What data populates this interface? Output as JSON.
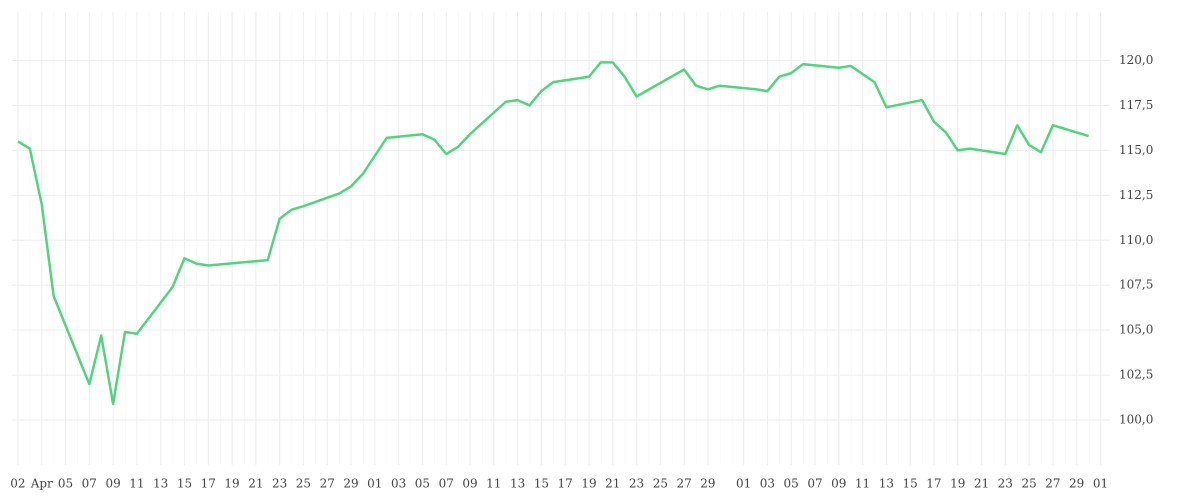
{
  "chart_data": {
    "type": "line",
    "x": [
      0,
      1,
      2,
      3,
      6,
      7,
      8,
      9,
      10,
      13,
      14,
      15,
      16,
      21,
      22,
      23,
      24,
      27,
      28,
      29,
      31,
      34,
      35,
      36,
      37,
      38,
      41,
      42,
      43,
      44,
      45,
      48,
      49,
      50,
      51,
      52,
      56,
      57,
      58,
      59,
      62,
      63,
      64,
      65,
      66,
      69,
      70,
      72,
      73,
      76,
      77,
      78,
      79,
      80,
      83,
      84,
      85,
      86,
      87,
      90
    ],
    "series": [
      {
        "color": "#52d47f",
        "values": [
          115.5,
          115.1,
          112.0,
          106.9,
          102.0,
          104.7,
          100.9,
          104.9,
          104.8,
          107.4,
          109.0,
          108.7,
          108.6,
          108.9,
          111.2,
          111.7,
          111.9,
          112.6,
          113.0,
          113.7,
          115.7,
          115.9,
          115.6,
          114.8,
          115.2,
          115.9,
          117.7,
          117.8,
          117.5,
          118.3,
          118.8,
          119.1,
          119.9,
          119.9,
          119.1,
          118.0,
          119.5,
          118.6,
          118.4,
          118.6,
          118.4,
          118.3,
          119.1,
          119.3,
          119.8,
          119.6,
          119.7,
          118.8,
          117.4,
          117.8,
          116.6,
          116.0,
          115.0,
          115.1,
          114.8,
          116.4,
          115.3,
          114.9,
          116.4,
          115.8
        ]
      }
    ],
    "xlim": [
      -0.5,
      91.8
    ],
    "xticks": [
      {
        "value": 0,
        "label": "02"
      },
      {
        "value": 2,
        "label": "Apr"
      },
      {
        "value": 4,
        "label": "05"
      },
      {
        "value": 6,
        "label": "07"
      },
      {
        "value": 8,
        "label": "09"
      },
      {
        "value": 10,
        "label": "11"
      },
      {
        "value": 12,
        "label": "13"
      },
      {
        "value": 14,
        "label": "15"
      },
      {
        "value": 16,
        "label": "17"
      },
      {
        "value": 18,
        "label": "19"
      },
      {
        "value": 20,
        "label": "21"
      },
      {
        "value": 22,
        "label": "23"
      },
      {
        "value": 24,
        "label": "25"
      },
      {
        "value": 26,
        "label": "27"
      },
      {
        "value": 28,
        "label": "29"
      },
      {
        "value": 30,
        "label": "01"
      },
      {
        "value": 32,
        "label": "03"
      },
      {
        "value": 34,
        "label": "05"
      },
      {
        "value": 36,
        "label": "07"
      },
      {
        "value": 38,
        "label": "09"
      },
      {
        "value": 40,
        "label": "11"
      },
      {
        "value": 42,
        "label": "13"
      },
      {
        "value": 44,
        "label": "15"
      },
      {
        "value": 46,
        "label": "17"
      },
      {
        "value": 48,
        "label": "19"
      },
      {
        "value": 50,
        "label": "21"
      },
      {
        "value": 52,
        "label": "23"
      },
      {
        "value": 54,
        "label": "25"
      },
      {
        "value": 56,
        "label": "27"
      },
      {
        "value": 58,
        "label": "29"
      },
      {
        "value": 61,
        "label": "01"
      },
      {
        "value": 63,
        "label": "03"
      },
      {
        "value": 65,
        "label": "05"
      },
      {
        "value": 67,
        "label": "07"
      },
      {
        "value": 69,
        "label": "09"
      },
      {
        "value": 71,
        "label": "11"
      },
      {
        "value": 73,
        "label": "13"
      },
      {
        "value": 75,
        "label": "15"
      },
      {
        "value": 77,
        "label": "17"
      },
      {
        "value": 79,
        "label": "19"
      },
      {
        "value": 81,
        "label": "21"
      },
      {
        "value": 83,
        "label": "23"
      },
      {
        "value": 85,
        "label": "25"
      },
      {
        "value": 87,
        "label": "27"
      },
      {
        "value": 89,
        "label": "29"
      },
      {
        "value": 91,
        "label": "01"
      }
    ],
    "ylim": [
      97.5,
      122.7
    ],
    "yticks": [
      {
        "value": 100,
        "label": "100,0"
      },
      {
        "value": 102.5,
        "label": "102,5"
      },
      {
        "value": 105,
        "label": "105,0"
      },
      {
        "value": 107.5,
        "label": "107,5"
      },
      {
        "value": 110,
        "label": "110,0"
      },
      {
        "value": 112.5,
        "label": "112,5"
      },
      {
        "value": 115,
        "label": "115,0"
      },
      {
        "value": 117.5,
        "label": "117,5"
      },
      {
        "value": 120,
        "label": "120,0"
      }
    ],
    "grid": true
  }
}
